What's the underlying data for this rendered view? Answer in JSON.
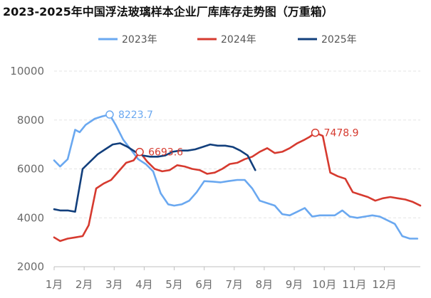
{
  "chart_data": {
    "type": "line",
    "title": "2023-2025年中国浮法玻璃样本企业厂库库存走势图（万重箱）",
    "xlabel": "",
    "ylabel": "",
    "x_ticks": [
      "1月",
      "2月",
      "3月",
      "4月",
      "5月",
      "6月",
      "7月",
      "8月",
      "9月",
      "10月",
      "11月",
      "12月"
    ],
    "ylim": [
      2000,
      10000
    ],
    "y_ticks": [
      2000,
      4000,
      6000,
      8000,
      10000
    ],
    "x_range": [
      1,
      13.2
    ],
    "grid": true,
    "legend_position": "top",
    "series": [
      {
        "name": "2023年",
        "color": "#6aa8f0",
        "x": [
          1,
          1.2,
          1.45,
          1.7,
          1.85,
          2.05,
          2.35,
          2.6,
          2.85,
          3.05,
          3.3,
          3.55,
          3.8,
          4.05,
          4.3,
          4.55,
          4.8,
          5.0,
          5.25,
          5.5,
          5.75,
          6.0,
          6.3,
          6.55,
          6.8,
          7.1,
          7.35,
          7.6,
          7.85,
          8.1,
          8.35,
          8.6,
          8.85,
          9.1,
          9.35,
          9.6,
          9.85,
          10.1,
          10.35,
          10.6,
          10.85,
          11.1,
          11.35,
          11.6,
          11.85,
          12.1,
          12.35,
          12.6,
          12.85,
          13.1
        ],
        "values": [
          6350,
          6100,
          6400,
          7600,
          7500,
          7800,
          8050,
          8150,
          8223.7,
          7800,
          7200,
          6800,
          6400,
          6200,
          5900,
          5000,
          4550,
          4500,
          4550,
          4700,
          5050,
          5500,
          5480,
          5450,
          5500,
          5550,
          5550,
          5200,
          4700,
          4600,
          4500,
          4150,
          4100,
          4250,
          4400,
          4050,
          4100,
          4100,
          4100,
          4300,
          4050,
          4000,
          4050,
          4100,
          4050,
          3900,
          3750,
          3250,
          3150,
          3150
        ]
      },
      {
        "name": "2024年",
        "color": "#d63a2f",
        "x": [
          1,
          1.2,
          1.45,
          1.7,
          1.95,
          2.15,
          2.4,
          2.65,
          2.9,
          3.15,
          3.4,
          3.65,
          3.85,
          4.1,
          4.35,
          4.6,
          4.85,
          5.1,
          5.35,
          5.6,
          5.85,
          6.1,
          6.35,
          6.6,
          6.85,
          7.1,
          7.35,
          7.6,
          7.85,
          8.1,
          8.35,
          8.6,
          8.85,
          9.1,
          9.35,
          9.5,
          9.7,
          9.95,
          10.2,
          10.45,
          10.7,
          10.95,
          11.2,
          11.45,
          11.7,
          11.95,
          12.2,
          12.45,
          12.7,
          12.95,
          13.2
        ],
        "values": [
          3200,
          3050,
          3150,
          3200,
          3250,
          3700,
          5200,
          5400,
          5550,
          5900,
          6250,
          6350,
          6693.6,
          6300,
          6000,
          5900,
          5950,
          6150,
          6100,
          6000,
          5950,
          5800,
          5850,
          6000,
          6200,
          6250,
          6400,
          6500,
          6700,
          6850,
          6650,
          6700,
          6850,
          7050,
          7200,
          7300,
          7478.9,
          7350,
          5850,
          5700,
          5600,
          5050,
          4950,
          4850,
          4700,
          4800,
          4850,
          4800,
          4750,
          4650,
          4500
        ]
      },
      {
        "name": "2025年",
        "color": "#123f7c",
        "x": [
          1,
          1.2,
          1.45,
          1.7,
          1.95,
          2.2,
          2.45,
          2.7,
          2.95,
          3.2,
          3.45,
          3.7,
          3.95,
          4.2,
          4.45,
          4.7,
          4.95,
          5.2,
          5.45,
          5.7,
          5.95,
          6.2,
          6.45,
          6.7,
          6.95,
          7.2,
          7.45,
          7.7
        ],
        "values": [
          4350,
          4300,
          4300,
          4250,
          6000,
          6300,
          6600,
          6800,
          7000,
          7050,
          6900,
          6700,
          6550,
          6500,
          6500,
          6550,
          6700,
          6750,
          6750,
          6800,
          6900,
          7000,
          6950,
          6950,
          6900,
          6750,
          6550,
          5950
        ]
      }
    ],
    "annotations": [
      {
        "label": "8223.7",
        "series": "2023年",
        "x": 2.85,
        "y": 8223.7
      },
      {
        "label": "6693.6",
        "series": "2024年",
        "x": 3.85,
        "y": 6693.6
      },
      {
        "label": "7478.9",
        "series": "2024年",
        "x": 9.7,
        "y": 7478.9
      }
    ]
  }
}
